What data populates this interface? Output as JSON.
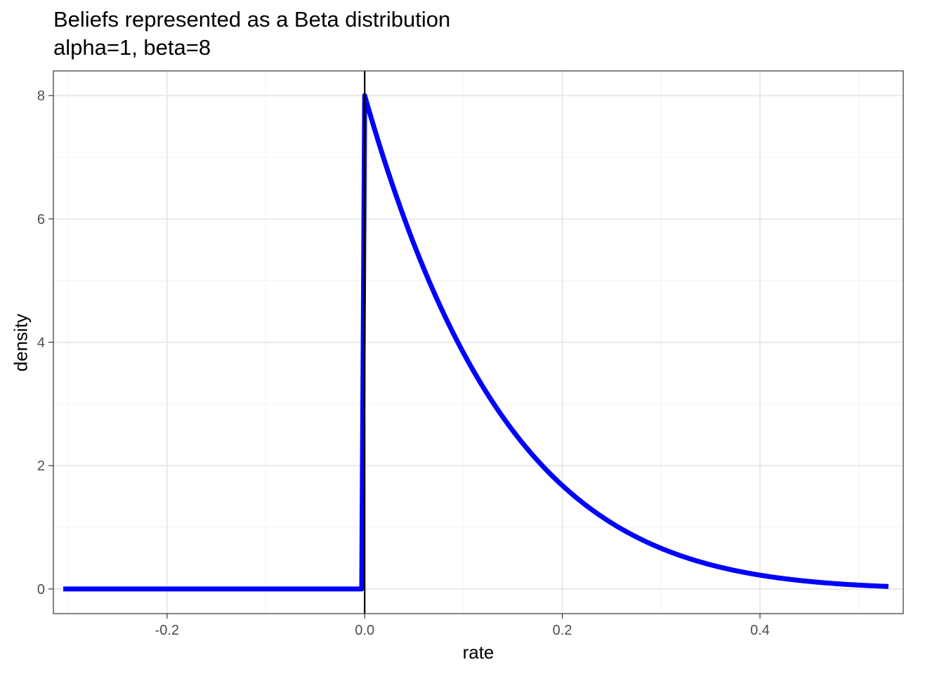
{
  "chart_data": {
    "type": "line",
    "title": "Beliefs represented as a Beta distribution",
    "subtitle": "alpha=1, beta=8",
    "xlabel": "rate",
    "ylabel": "density",
    "xlim": [
      -0.315,
      0.545
    ],
    "ylim": [
      -0.4,
      8.4
    ],
    "x_ticks": [
      -0.2,
      0.0,
      0.2,
      0.4
    ],
    "x_tick_labels": [
      "-0.2",
      "0.0",
      "0.2",
      "0.4"
    ],
    "y_ticks": [
      0,
      2,
      4,
      6,
      8
    ],
    "y_tick_labels": [
      "0",
      "2",
      "4",
      "6",
      "8"
    ],
    "grid": true,
    "vline_x": 0,
    "series": [
      {
        "color": "#0000ff",
        "distribution": {
          "alpha": 1,
          "beta": 8
        },
        "x": [
          -0.305,
          -0.2,
          -0.1,
          -0.003,
          0.0,
          0.02,
          0.05,
          0.1,
          0.15,
          0.2,
          0.25,
          0.3,
          0.35,
          0.4,
          0.45,
          0.5,
          0.53
        ],
        "values": [
          0,
          0,
          0,
          0,
          8.0,
          6.82,
          5.37,
          3.83,
          2.59,
          1.68,
          1.07,
          0.66,
          0.39,
          0.22,
          0.12,
          0.06,
          0.04
        ]
      }
    ],
    "colors": {
      "line": "#0000ff",
      "vline": "#000000",
      "grid_major": "#ebebeb",
      "grid_minor": "#f5f5f5",
      "border": "#333333"
    }
  }
}
